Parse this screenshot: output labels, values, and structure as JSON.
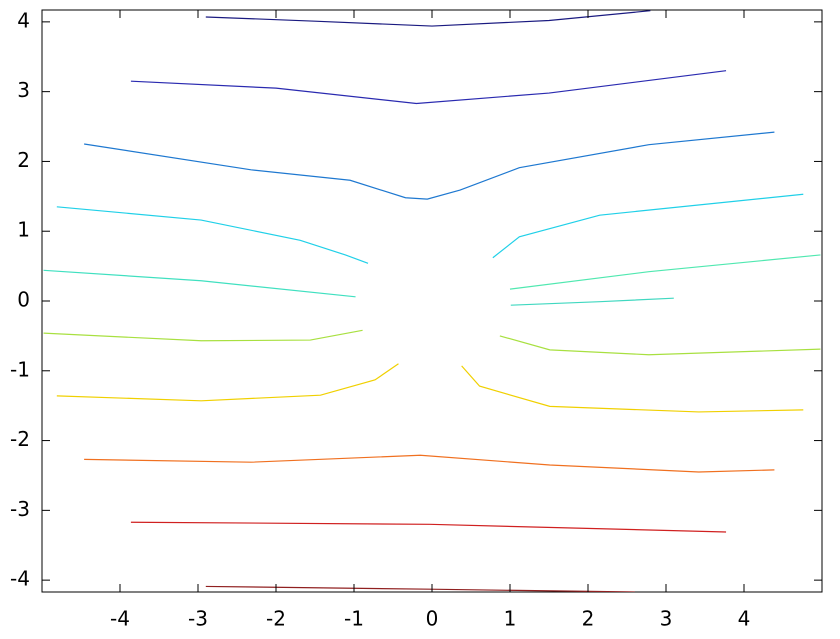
{
  "chart_data": {
    "type": "line",
    "xlim": [
      -5,
      5
    ],
    "ylim": [
      -4.17,
      4.17
    ],
    "xticks": [
      -4,
      -3,
      -2,
      -1,
      0,
      1,
      2,
      3,
      4
    ],
    "yticks": [
      -4,
      -3,
      -2,
      -1,
      0,
      1,
      2,
      3,
      4
    ],
    "series": [
      {
        "color": "#1a1a80",
        "x": [
          -2.9,
          -1.5,
          0,
          1.5,
          2.8
        ],
        "values": [
          4.07,
          4.01,
          3.94,
          4.02,
          4.16
        ]
      },
      {
        "color": "#2a2ab0",
        "x": [
          -3.86,
          -2,
          -0.2,
          1.5,
          3.77
        ],
        "values": [
          3.15,
          3.05,
          2.83,
          2.98,
          3.3
        ]
      },
      {
        "color": "#1e78d0",
        "x": [
          -4.46,
          -2.32,
          -1.05,
          -0.34,
          -0.06,
          0.36,
          1.12,
          2.78,
          4.39
        ],
        "values": [
          2.25,
          1.88,
          1.73,
          1.48,
          1.46,
          1.59,
          1.91,
          2.24,
          2.42
        ]
      },
      {
        "color": "#20d0e8",
        "x": [
          -4.81,
          -2.96,
          -1.69,
          -1.11,
          -0.82
        ],
        "values": [
          1.35,
          1.16,
          0.87,
          0.66,
          0.54
        ]
      },
      {
        "color": "#20d0e8",
        "x": [
          0.78,
          1.12,
          2.15,
          4.76
        ],
        "values": [
          0.62,
          0.92,
          1.23,
          1.53
        ]
      },
      {
        "color": "#40e0c0",
        "x": [
          -4.98,
          -2.96,
          -0.98
        ],
        "values": [
          0.44,
          0.29,
          0.06
        ]
      },
      {
        "color": "#50e8b0",
        "x": [
          1.0,
          2.78,
          4.98
        ],
        "values": [
          0.17,
          0.42,
          0.66
        ]
      },
      {
        "color": "#40d8c0",
        "x": [
          1.01,
          2.15,
          3.1
        ],
        "values": [
          -0.06,
          -0.01,
          0.04
        ]
      },
      {
        "color": "#a8e040",
        "x": [
          -4.98,
          -2.96,
          -1.56,
          -0.89
        ],
        "values": [
          -0.46,
          -0.57,
          -0.56,
          -0.42
        ]
      },
      {
        "color": "#a8e040",
        "x": [
          0.87,
          1.51,
          2.78,
          4.98
        ],
        "values": [
          -0.5,
          -0.7,
          -0.77,
          -0.69
        ]
      },
      {
        "color": "#f0d000",
        "x": [
          -4.81,
          -2.96,
          -1.43,
          -0.73,
          -0.43
        ],
        "values": [
          -1.36,
          -1.43,
          -1.35,
          -1.13,
          -0.9
        ]
      },
      {
        "color": "#f0d000",
        "x": [
          0.38,
          0.61,
          1.51,
          3.42,
          4.76
        ],
        "values": [
          -0.93,
          -1.22,
          -1.51,
          -1.59,
          -1.56
        ]
      },
      {
        "color": "#f07020",
        "x": [
          -4.46,
          -2.32,
          -0.15,
          1.51,
          3.42,
          4.39
        ],
        "values": [
          -2.27,
          -2.31,
          -2.21,
          -2.35,
          -2.45,
          -2.42
        ]
      },
      {
        "color": "#d02020",
        "x": [
          -3.86,
          -0.03,
          3.77
        ],
        "values": [
          -3.17,
          -3.2,
          -3.31
        ]
      },
      {
        "color": "#902020",
        "x": [
          -2.9,
          -0.03,
          2.6
        ],
        "values": [
          -4.09,
          -4.13,
          -4.17
        ]
      }
    ]
  }
}
